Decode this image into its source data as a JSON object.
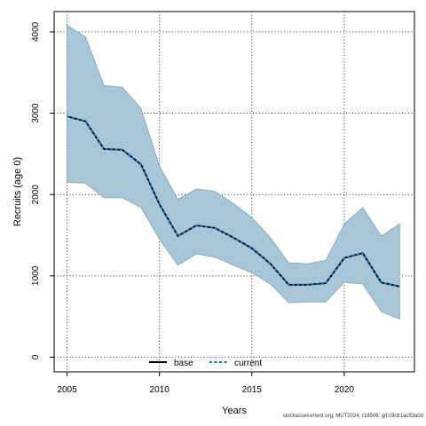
{
  "chart_data": {
    "type": "area",
    "xlabel": "Years",
    "ylabel": "Recruits (age 0)",
    "xlim": [
      2004.3,
      2023.8
    ],
    "ylim": [
      -180,
      4250
    ],
    "x_ticks": [
      2005,
      2010,
      2015,
      2020
    ],
    "y_ticks": [
      0,
      1000,
      2000,
      3000,
      4000
    ],
    "x_tick_labels": [
      "2005",
      "2010",
      "2015",
      "2020"
    ],
    "y_tick_labels": [
      "0",
      "1000",
      "2000",
      "3000",
      "4000"
    ],
    "grid": true,
    "legend_position": "bottom",
    "band_color": "#a7c7d9",
    "x": [
      2005,
      2006,
      2007,
      2008,
      2009,
      2010,
      2011,
      2012,
      2013,
      2014,
      2015,
      2016,
      2017,
      2018,
      2019,
      2020,
      2021,
      2022,
      2023
    ],
    "series": [
      {
        "name": "base",
        "color": "#000000",
        "values": [
          2960,
          2900,
          2560,
          2550,
          2370,
          1880,
          1490,
          1620,
          1590,
          1470,
          1340,
          1150,
          890,
          890,
          910,
          1220,
          1280,
          920,
          870
        ]
      },
      {
        "name": "current",
        "color": "#1f78b4",
        "values": [
          2960,
          2900,
          2560,
          2550,
          2370,
          1880,
          1490,
          1620,
          1590,
          1470,
          1340,
          1150,
          890,
          890,
          910,
          1220,
          1280,
          920,
          870
        ]
      }
    ],
    "interval": {
      "upper": [
        4080,
        3940,
        3340,
        3320,
        3060,
        2350,
        1940,
        2070,
        2040,
        1890,
        1720,
        1470,
        1160,
        1150,
        1190,
        1640,
        1840,
        1490,
        1640
      ],
      "lower": [
        2150,
        2140,
        1960,
        1960,
        1840,
        1450,
        1130,
        1270,
        1230,
        1130,
        1040,
        900,
        670,
        680,
        680,
        920,
        900,
        560,
        470
      ]
    }
  },
  "footer": "stockassessment.org, MUT2024, r18506, git:c9c61ac53a0d"
}
